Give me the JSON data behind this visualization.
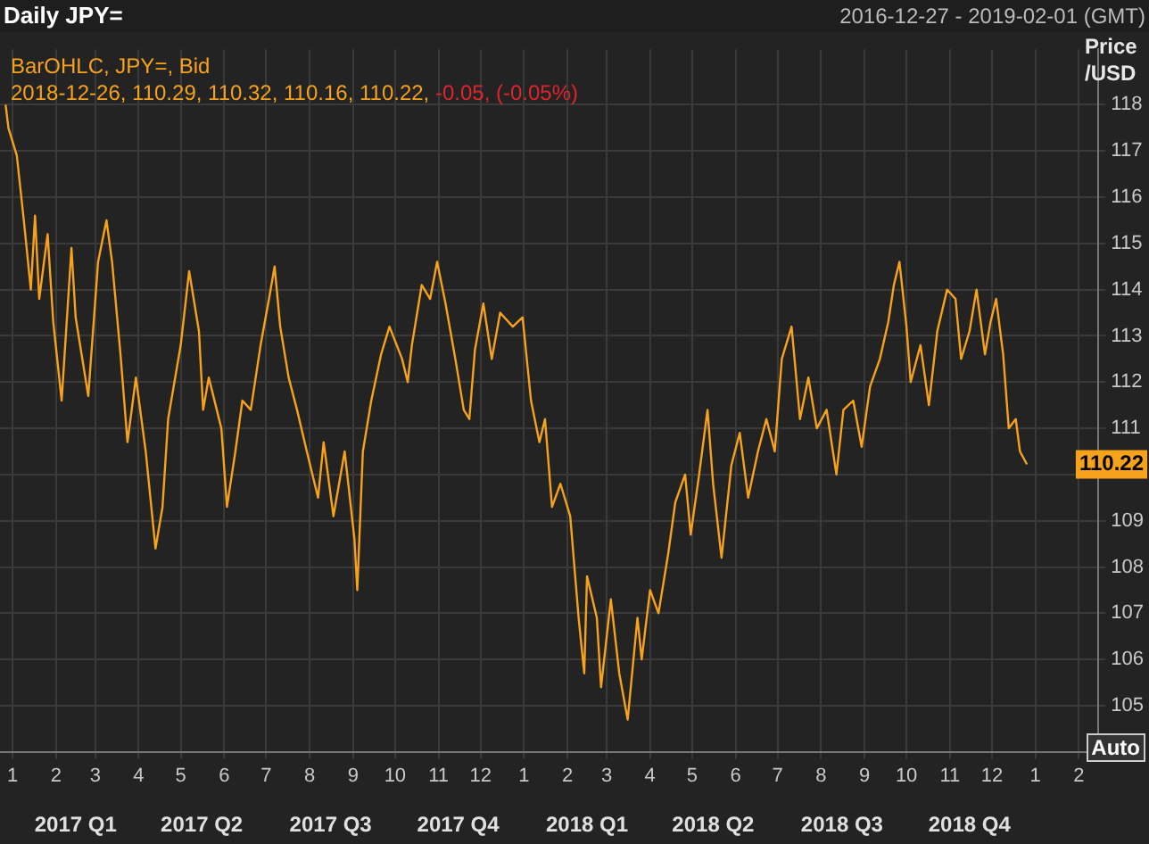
{
  "chart_data": {
    "type": "line",
    "title": "Daily JPY=",
    "subtitle": "2016-12-27 - 2019-02-01 (GMT)",
    "ylabel": "Price /USD",
    "annotations": [
      "BarOHLC, JPY=, Bid",
      "2018-12-26, 110.29, 110.32, 110.16, 110.22,",
      "-0.05, (-0.05%)",
      "Auto",
      "110.22"
    ],
    "series": [
      {
        "color": "#f7a21b",
        "x": [
          "2016-12-27",
          "2016-12-29",
          "2017-01-04",
          "2017-01-09",
          "2017-01-14",
          "2017-01-17",
          "2017-01-20",
          "2017-01-26",
          "2017-01-30",
          "2017-02-05",
          "2017-02-12",
          "2017-02-15",
          "2017-02-24",
          "2017-03-03",
          "2017-03-09",
          "2017-03-13",
          "2017-03-19",
          "2017-03-24",
          "2017-03-30",
          "2017-04-06",
          "2017-04-13",
          "2017-04-18",
          "2017-04-22",
          "2017-05-01",
          "2017-05-07",
          "2017-05-14",
          "2017-05-17",
          "2017-05-21",
          "2017-05-30",
          "2017-06-03",
          "2017-06-09",
          "2017-06-14",
          "2017-06-20",
          "2017-06-27",
          "2017-07-03",
          "2017-07-07",
          "2017-07-11",
          "2017-07-17",
          "2017-07-23",
          "2017-07-30",
          "2017-08-07",
          "2017-08-11",
          "2017-08-18",
          "2017-08-26",
          "2017-09-02",
          "2017-09-04",
          "2017-09-08",
          "2017-09-14",
          "2017-09-21",
          "2017-09-27",
          "2017-10-06",
          "2017-10-10",
          "2017-10-13",
          "2017-10-20",
          "2017-10-26",
          "2017-10-31",
          "2017-11-06",
          "2017-11-13",
          "2017-11-19",
          "2017-11-23",
          "2017-11-27",
          "2017-12-03",
          "2017-12-09",
          "2017-12-15",
          "2017-12-24",
          "2017-12-31",
          "2018-01-06",
          "2018-01-12",
          "2018-01-16",
          "2018-01-21",
          "2018-01-27",
          "2018-02-03",
          "2018-02-09",
          "2018-02-13",
          "2018-02-15",
          "2018-02-22",
          "2018-02-25",
          "2018-03-04",
          "2018-03-10",
          "2018-03-16",
          "2018-03-23",
          "2018-03-26",
          "2018-04-01",
          "2018-04-07",
          "2018-04-14",
          "2018-04-19",
          "2018-04-26",
          "2018-04-30",
          "2018-05-06",
          "2018-05-12",
          "2018-05-16",
          "2018-05-22",
          "2018-05-29",
          "2018-06-04",
          "2018-06-10",
          "2018-06-17",
          "2018-06-23",
          "2018-06-29",
          "2018-07-04",
          "2018-07-11",
          "2018-07-17",
          "2018-07-23",
          "2018-07-29",
          "2018-08-05",
          "2018-08-12",
          "2018-08-17",
          "2018-08-24",
          "2018-08-30",
          "2018-09-05",
          "2018-09-12",
          "2018-09-18",
          "2018-09-22",
          "2018-09-26",
          "2018-10-01",
          "2018-10-04",
          "2018-10-11",
          "2018-10-17",
          "2018-10-23",
          "2018-10-30",
          "2018-11-05",
          "2018-11-09",
          "2018-11-15",
          "2018-11-20",
          "2018-11-26",
          "2018-11-30",
          "2018-12-04",
          "2018-12-09",
          "2018-12-13",
          "2018-12-18",
          "2018-12-21",
          "2018-12-26"
        ],
        "values": [
          118.0,
          117.5,
          116.9,
          115.5,
          114.0,
          115.6,
          113.8,
          115.2,
          113.3,
          111.6,
          114.9,
          113.4,
          111.7,
          114.6,
          115.5,
          114.6,
          112.6,
          110.7,
          112.1,
          110.5,
          108.4,
          109.3,
          111.2,
          112.8,
          114.4,
          113.1,
          111.4,
          112.1,
          111.0,
          109.3,
          110.5,
          111.6,
          111.4,
          112.8,
          113.8,
          114.5,
          113.2,
          112.1,
          111.4,
          110.5,
          109.5,
          110.7,
          109.1,
          110.5,
          108.6,
          107.5,
          110.5,
          111.6,
          112.6,
          113.2,
          112.5,
          112.0,
          112.8,
          114.1,
          113.8,
          114.6,
          113.7,
          112.5,
          111.4,
          111.2,
          112.7,
          113.7,
          112.5,
          113.5,
          113.2,
          113.4,
          111.6,
          110.7,
          111.2,
          109.3,
          109.8,
          109.1,
          106.9,
          105.7,
          107.8,
          106.9,
          105.4,
          107.3,
          105.7,
          104.7,
          106.9,
          106.0,
          107.5,
          107.0,
          108.3,
          109.4,
          110.0,
          108.7,
          110.0,
          111.4,
          109.8,
          108.2,
          110.2,
          110.9,
          109.5,
          110.5,
          111.2,
          110.5,
          112.5,
          113.2,
          111.2,
          112.1,
          111.0,
          111.4,
          110.0,
          111.4,
          111.6,
          110.6,
          111.9,
          112.5,
          113.3,
          114.1,
          114.6,
          113.2,
          112.0,
          112.8,
          111.5,
          113.1,
          114.0,
          113.8,
          112.5,
          113.1,
          114.0,
          112.6,
          113.3,
          113.8,
          112.6,
          111.0,
          111.2,
          110.5,
          110.22
        ]
      }
    ],
    "xlim": [
      "2016-12-23",
      "2019-02-15"
    ],
    "xticks": [
      {
        "value": "2017-01-01",
        "label": "1"
      },
      {
        "value": "2017-02-01",
        "label": "2"
      },
      {
        "value": "2017-03-01",
        "label": "3"
      },
      {
        "value": "2017-04-01",
        "label": "4"
      },
      {
        "value": "2017-05-01",
        "label": "5"
      },
      {
        "value": "2017-06-01",
        "label": "6"
      },
      {
        "value": "2017-07-01",
        "label": "7"
      },
      {
        "value": "2017-08-01",
        "label": "8"
      },
      {
        "value": "2017-09-01",
        "label": "9"
      },
      {
        "value": "2017-10-01",
        "label": "10"
      },
      {
        "value": "2017-11-01",
        "label": "11"
      },
      {
        "value": "2017-12-01",
        "label": "12"
      },
      {
        "value": "2018-01-01",
        "label": "1"
      },
      {
        "value": "2018-02-01",
        "label": "2"
      },
      {
        "value": "2018-03-01",
        "label": "3"
      },
      {
        "value": "2018-04-01",
        "label": "4"
      },
      {
        "value": "2018-05-01",
        "label": "5"
      },
      {
        "value": "2018-06-01",
        "label": "6"
      },
      {
        "value": "2018-07-01",
        "label": "7"
      },
      {
        "value": "2018-08-01",
        "label": "8"
      },
      {
        "value": "2018-09-01",
        "label": "9"
      },
      {
        "value": "2018-10-01",
        "label": "10"
      },
      {
        "value": "2018-11-01",
        "label": "11"
      },
      {
        "value": "2018-12-01",
        "label": "12"
      },
      {
        "value": "2019-01-01",
        "label": "1"
      },
      {
        "value": "2019-02-01",
        "label": "2"
      }
    ],
    "x2lim": [
      "2016-12-23",
      "2019-02-15"
    ],
    "x2ticks": [
      {
        "value": "2017-02-15",
        "label": "2017 Q1"
      },
      {
        "value": "2017-05-16",
        "label": "2017 Q2"
      },
      {
        "value": "2017-08-16",
        "label": "2017 Q3"
      },
      {
        "value": "2017-11-15",
        "label": "2017 Q4"
      },
      {
        "value": "2018-02-15",
        "label": "2018 Q1"
      },
      {
        "value": "2018-05-16",
        "label": "2018 Q2"
      },
      {
        "value": "2018-08-16",
        "label": "2018 Q3"
      },
      {
        "value": "2018-11-15",
        "label": "2018 Q4"
      }
    ],
    "ylim": [
      104,
      119.2
    ],
    "yticks": [
      105,
      106,
      107,
      108,
      109,
      {
        "value": 110,
        "label": null
      },
      111,
      112,
      113,
      114,
      115,
      116,
      117,
      118
    ],
    "grid": true
  }
}
